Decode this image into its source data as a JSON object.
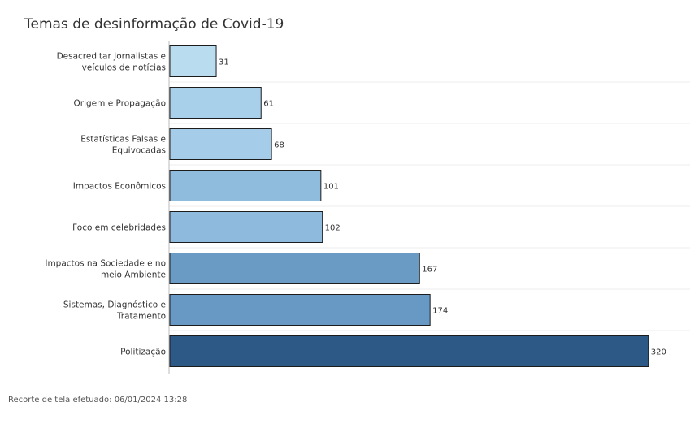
{
  "header": {
    "title": "Temas de desinformação de Covid-19"
  },
  "footer": {
    "text": "Recorte de tela efetuado: 06/01/2024 13:28"
  },
  "chart_data": {
    "type": "bar",
    "orientation": "horizontal",
    "title": "Temas de desinformação de Covid-19",
    "xlabel": "",
    "ylabel": "",
    "categories": [
      [
        "Desacreditar Jornalistas e",
        "veículos de notícias"
      ],
      [
        "Origem e Propagação"
      ],
      [
        "Estatísticas Falsas e",
        "Equivocadas"
      ],
      [
        "Impactos Econômicos"
      ],
      [
        "Foco em celebridades"
      ],
      [
        "Impactos na Sociedade e no",
        "meio Ambiente"
      ],
      [
        "Sistemas, Diagnóstico e",
        "Tratamento"
      ],
      [
        "Politização"
      ]
    ],
    "values": [
      31,
      61,
      68,
      101,
      102,
      167,
      174,
      320
    ],
    "colors": [
      "#b9dcef",
      "#a9d0ea",
      "#a5cde9",
      "#8fbbdd",
      "#8ebadd",
      "#6a9bc5",
      "#6799c4",
      "#2c5985"
    ],
    "xlim": [
      0,
      325
    ],
    "grid": true,
    "legend": "none"
  }
}
